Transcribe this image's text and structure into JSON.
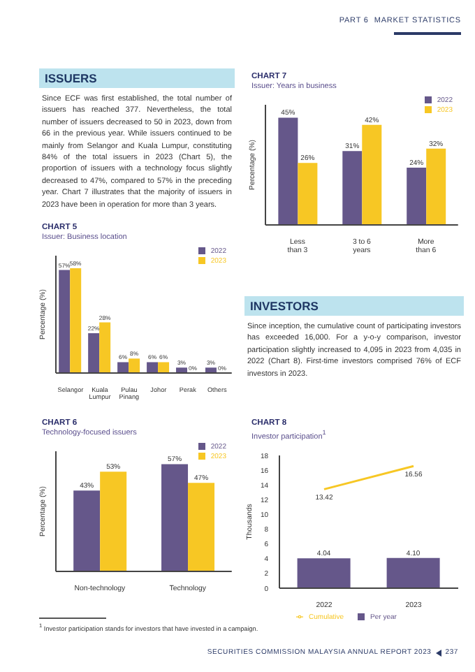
{
  "chart_data": [
    {
      "type": "other",
      "annotations": [
        "PART 6",
        "MARKET STATISTICS"
      ]
    },
    {
      "type": "other",
      "title": "ISSUERS",
      "annotations": [
        "Since ECF was first established, the total number of issuers has reached 377. Nevertheless, the total number of issuers decreased to 50 in 2023, down from 66 in the previous year. While issuers continued to be mainly from Selangor and Kuala Lumpur, constituting 84% of the total issuers in 2023 (Chart 5), the proportion of issuers with a technology focus slightly decreased to 47%, compared to 57% in the preceding year. Chart 7 illustrates that the majority of issuers in 2023 have been in operation for more than 3 years."
      ]
    },
    {
      "type": "bar",
      "title": "CHART 7",
      "subtitle": "Issuer: Years in business",
      "ylabel": "Percentage (%)",
      "categories": [
        "Less than 3 years",
        "3 to 6 years",
        "More than 6 years"
      ],
      "legend": "top right",
      "tick_labels": "x",
      "series": [
        {
          "name": "2022",
          "color": "#65578a",
          "values": [
            45,
            31,
            24
          ],
          "value_labels": [
            "45%",
            "31%",
            "24%"
          ]
        },
        {
          "name": "2023",
          "color": "#f7c724",
          "values": [
            26,
            42,
            32
          ],
          "value_labels": [
            "26%",
            "42%",
            "32%"
          ]
        }
      ]
    },
    {
      "type": "bar",
      "title": "CHART 5",
      "subtitle": "Issuer: Business location",
      "ylabel": "Percentage (%)",
      "categories": [
        "Selangor",
        "Kuala Lumpur",
        "Pulau Pinang",
        "Johor",
        "Perak",
        "Others"
      ],
      "legend": "top right",
      "tick_labels": "x",
      "series": [
        {
          "name": "2022",
          "color": "#65578a",
          "values": [
            57,
            22,
            6,
            6,
            3,
            3
          ],
          "value_labels": [
            "57%",
            "22%",
            "6%",
            "6%",
            "3%",
            "3%"
          ]
        },
        {
          "name": "2023",
          "color": "#f7c724",
          "values": [
            58,
            28,
            8,
            6,
            0,
            0
          ],
          "value_labels": [
            "58%",
            "28%",
            "8%",
            "6%",
            "0%",
            "0%"
          ]
        }
      ]
    },
    {
      "type": "other",
      "title": "INVESTORS",
      "annotations": [
        "Since inception, the cumulative count of participating investors has exceeded 16,000. For a y-o-y comparison, investor participation slightly increased to 4,095 in 2023 from 4,035 in 2022 (Chart 8). First-time investors comprised 76% of ECF investors in 2023."
      ]
    },
    {
      "type": "bar",
      "title": "CHART 6",
      "subtitle": "Technology-focused issuers",
      "ylabel": "Percentage (%)",
      "categories": [
        "Non-technology",
        "Technology"
      ],
      "legend": "top right",
      "tick_labels": "x",
      "series": [
        {
          "name": "2022",
          "color": "#65578a",
          "values": [
            43,
            57
          ],
          "value_labels": [
            "43%",
            "57%"
          ]
        },
        {
          "name": "2023",
          "color": "#f7c724",
          "values": [
            53,
            47
          ],
          "value_labels": [
            "53%",
            "47%"
          ]
        }
      ]
    },
    {
      "type": "bar",
      "title": "CHART 8",
      "subtitle": "Investor participation$^{1}$",
      "ylabel": "Thousands",
      "categories": [
        "2022",
        "2023"
      ],
      "ylim": [
        0,
        18
      ],
      "yticks": [
        0,
        2,
        4,
        6,
        8,
        10,
        12,
        14,
        16,
        18
      ],
      "legend": "bottom",
      "marker": "none",
      "series": [
        {
          "name": "Per year",
          "type": "bar",
          "color": "#65578a",
          "values": [
            4.04,
            4.1
          ],
          "value_labels": [
            "4.04",
            "4.10"
          ]
        },
        {
          "name": "Cumulative",
          "type": "line",
          "color": "#f7c724",
          "values": [
            13.42,
            16.56
          ],
          "value_labels": [
            "13.42",
            "16.56"
          ]
        }
      ]
    },
    {
      "type": "other",
      "annotations": [
        "$^{1}$ Investor participation stands for investors that have invested in a campaign.",
        "SECURITIES COMMISSION MALAYSIA ANNUAL REPORT 2023",
        "237"
      ]
    }
  ]
}
